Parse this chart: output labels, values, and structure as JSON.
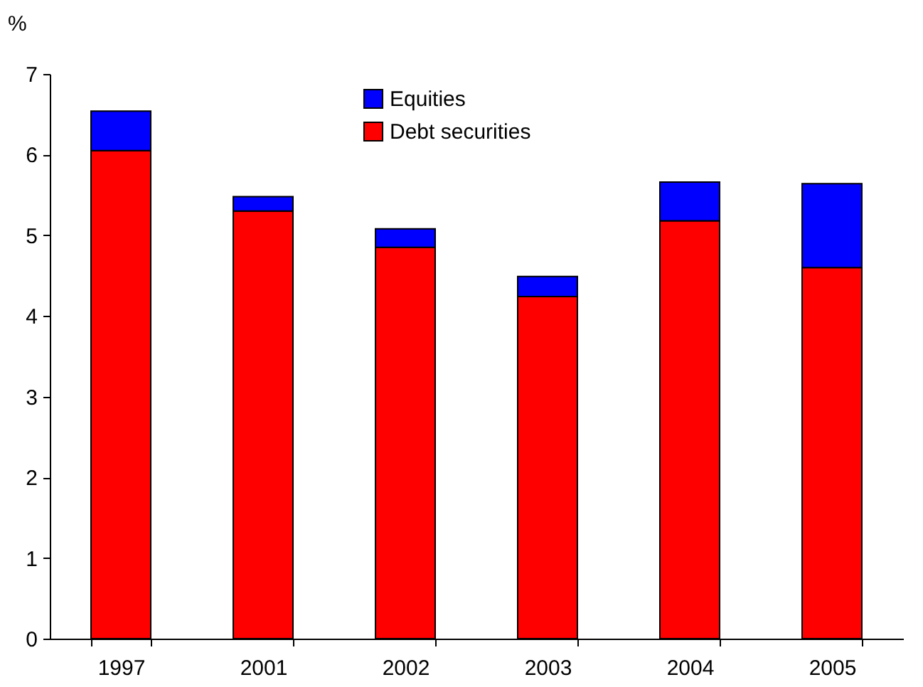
{
  "chart_data": {
    "type": "bar",
    "ylabel": "%",
    "stacked": true,
    "legend": "top",
    "grid": false,
    "categories": [
      "1997",
      "2001",
      "2002",
      "2003",
      "2004",
      "2005"
    ],
    "series": [
      {
        "name": "Debt securities",
        "color": "#ff0000",
        "values": [
          6.05,
          5.3,
          4.85,
          4.24,
          5.18,
          4.6
        ]
      },
      {
        "name": "Equities",
        "color": "#0000ff",
        "values": [
          0.49,
          0.18,
          0.23,
          0.25,
          0.48,
          1.04
        ]
      }
    ],
    "ylim": [
      0,
      7
    ],
    "yticks": [
      0,
      1,
      2,
      3,
      4,
      5,
      6,
      7
    ]
  }
}
